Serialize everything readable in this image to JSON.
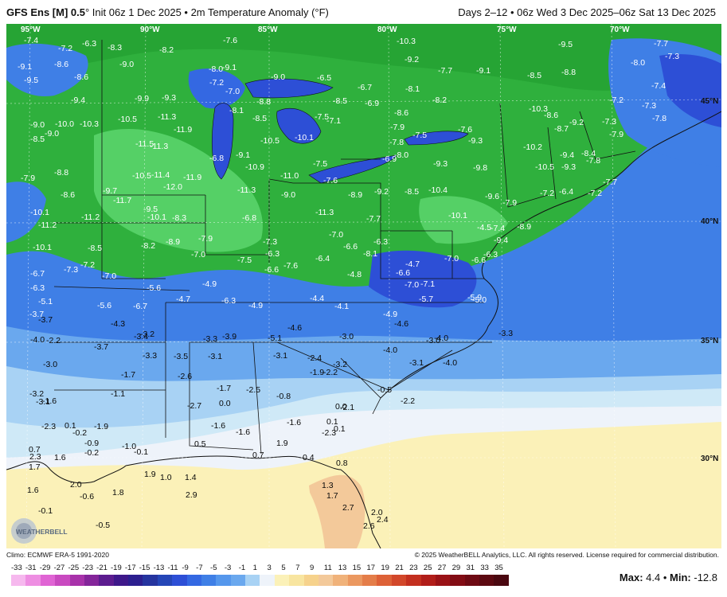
{
  "header": {
    "model": "GFS Ens [M] 0.5",
    "degree_mark": "°",
    "init": " Init 06z 1 Dec 2025 • 2m Temperature Anomaly (°F)",
    "range": "Days 2–12 • 06z Wed 3 Dec 2025–06z Sat 13 Dec 2025"
  },
  "map": {
    "lon_labels": [
      "95°W",
      "90°W",
      "85°W",
      "80°W",
      "75°W",
      "70°W"
    ],
    "lat_labels": [
      "45°N",
      "40°N",
      "35°N",
      "30°N"
    ],
    "colors": {
      "deep_blue": "#2d4fd6",
      "mid_blue": "#3f7fe6",
      "light_blue": "#6aa8ee",
      "pale_blue": "#a8d2f4",
      "cyan_pale": "#cfe9f7",
      "white_ish": "#eef3fa",
      "pale_yellow": "#fbf1b8",
      "yellow": "#f8e5a0",
      "orange_pale": "#f3c99a",
      "green_dark": "#1f9b2e",
      "green": "#2fb03d",
      "green_light": "#55d066"
    },
    "values": [
      "-7.4",
      "-6.3",
      "-8.3",
      "-7.2",
      "-7.6",
      "-8.2",
      "-10.3",
      "-9.5",
      "-7.7",
      "-7.3",
      "-9.1",
      "-8.6",
      "-9.0",
      "-8.0",
      "-9.1",
      "-9.2",
      "-7.7",
      "-9.1",
      "-8.5",
      "-8.8",
      "-8.0",
      "-9.5",
      "-8.6",
      "-9.9",
      "-9.3",
      "-7.2",
      "-7.0",
      "-8.8",
      "-6.5",
      "-6.7",
      "-8.1",
      "-9.0",
      "-8.5",
      "-7.4",
      "-9.4",
      "-7.2",
      "-7.3",
      "-9.0",
      "-10.0",
      "-10.3",
      "-10.5",
      "-11.3",
      "-8.1",
      "-8.5",
      "-7.5",
      "-6.9",
      "-8.6",
      "-8.2",
      "-10.3",
      "-8.6",
      "-7.3",
      "-7.8",
      "-8.5",
      "-11.5",
      "-11.3",
      "-11.9",
      "-10.5",
      "-10.1",
      "-7.1",
      "-9.0",
      "-7.9",
      "-7.5",
      "-7.6",
      "-9.3",
      "-8.7",
      "-9.2",
      "-6.8",
      "-9.1",
      "-10.9",
      "-7.8",
      "-8.0",
      "-10.2",
      "-9.4",
      "-8.4",
      "-7.8",
      "-7.9",
      "-8.8",
      "-10.5",
      "-11.4",
      "-11.9",
      "-12.0",
      "-11.0",
      "-7.5",
      "-6.9",
      "-9.3",
      "-9.8",
      "-10.5",
      "-9.3",
      "-7.7",
      "-7.9",
      "-8.6",
      "-9.7",
      "-11.3",
      "-7.6",
      "-8.9",
      "-9.2",
      "-8.5",
      "-10.4",
      "-9.6",
      "-7.2",
      "-6.4",
      "-7.2",
      "-10.1",
      "-11.7",
      "-9.5",
      "-9.0",
      "-11.3",
      "-10.1",
      "-6.8",
      "-7.9",
      "-8.9",
      "-11.2",
      "-11.2",
      "-10.1",
      "-8.3",
      "-8.9",
      "-7.3",
      "-7.7",
      "-6.3",
      "-4.5",
      "-7.4",
      "-9.4",
      "-10.1",
      "-8.5",
      "-8.2",
      "-7.9",
      "-7.0",
      "-6.6",
      "-6.4",
      "-8.1",
      "-7.3",
      "-7.2",
      "-7.0",
      "-7.5",
      "-6.3",
      "-7.6",
      "-4.7",
      "-7.0",
      "-6.6",
      "-6.3",
      "-6.7",
      "-7.0",
      "-6.6",
      "-4.8",
      "-6.6",
      "-7.0",
      "-7.1",
      "-6.3",
      "-5.6",
      "-4.9",
      "-4.7",
      "-6.3",
      "-4.9",
      "-4.4",
      "-4.1",
      "-5.7",
      "-5.9",
      "-5.1",
      "-5.0",
      "-3.7",
      "-3.7",
      "-5.6",
      "-6.7",
      "-4.9",
      "-4.6",
      "-4.0",
      "-2.2",
      "-4.3",
      "-3.4",
      "-3.3",
      "-3.9",
      "-5.1",
      "-4.6",
      "-3.0",
      "-3.0",
      "-3.3",
      "-3.7",
      "-3.2",
      "-4.0",
      "-4.0",
      "-4.0",
      "-3.0",
      "-3.3",
      "-3.5",
      "-3.1",
      "-3.1",
      "-2.4",
      "-1.7",
      "-2.6",
      "-1.9",
      "-2.2",
      "-3.2",
      "-3.1",
      "-3.2",
      "-1.6",
      "-1.1",
      "-1.7",
      "-2.5",
      "-0.8",
      "-0.5",
      "-2.2",
      "-3.1",
      "0.0",
      "0.0",
      "-2.1",
      "-2.3",
      "-2.7",
      "-1.6",
      "0.1",
      "0.1",
      "-1.9",
      "-1.6",
      "-1.6",
      "-2.3",
      "0.1",
      "-0.2",
      "-0.9",
      "-1.0",
      "0.5",
      "1.9",
      "0.7",
      "-0.2",
      "-0.1",
      "0.7",
      "0.8",
      "0.4",
      "2.3",
      "1.6",
      "1.9",
      "1.0",
      "1.4",
      "1.7",
      "2.0",
      "1.8",
      "2.9",
      "1.3",
      "2.0",
      "1.6",
      "1.7",
      "2.7",
      "2.6",
      "-0.1",
      "-0.6",
      "2.4",
      "-0.5"
    ]
  },
  "footer": {
    "climo": "Climo: ECMWF ERA-5 1991-2020",
    "copyright": "© 2025 WeatherBELL Analytics, LLC. All rights reserved. License required for commercial distribution.",
    "max_label": "Max:",
    "max_value": "4.4",
    "min_label": "Min:",
    "min_value": "-12.8",
    "logo_text": "WEATHERBELL"
  },
  "colorbar": {
    "ticks": [
      "-33",
      "-31",
      "-29",
      "-27",
      "-25",
      "-23",
      "-21",
      "-19",
      "-17",
      "-15",
      "-13",
      "-11",
      "-9",
      "-7",
      "-5",
      "-3",
      "-1",
      "1",
      "3",
      "5",
      "7",
      "9",
      "11",
      "13",
      "15",
      "17",
      "19",
      "21",
      "23",
      "25",
      "27",
      "29",
      "31",
      "33",
      "35"
    ],
    "colors": [
      "#f6b8ee",
      "#ee8ee2",
      "#e064d4",
      "#c94ac0",
      "#a832aa",
      "#84259a",
      "#5c1c8f",
      "#3e188a",
      "#2c1f8f",
      "#25349f",
      "#2546b7",
      "#2d4fd6",
      "#3468e2",
      "#3f7fe6",
      "#5597ec",
      "#6aa8ee",
      "#a8d2f4",
      "#eef3fa",
      "#fbf1b8",
      "#f8e5a0",
      "#f6d28c",
      "#f3c99a",
      "#f0b27a",
      "#eb9860",
      "#e47d49",
      "#dd6137",
      "#d2472a",
      "#c32f1f",
      "#b11d19",
      "#9a1216",
      "#820c14",
      "#6e0a13",
      "#5c0911",
      "#4a0810"
    ]
  }
}
